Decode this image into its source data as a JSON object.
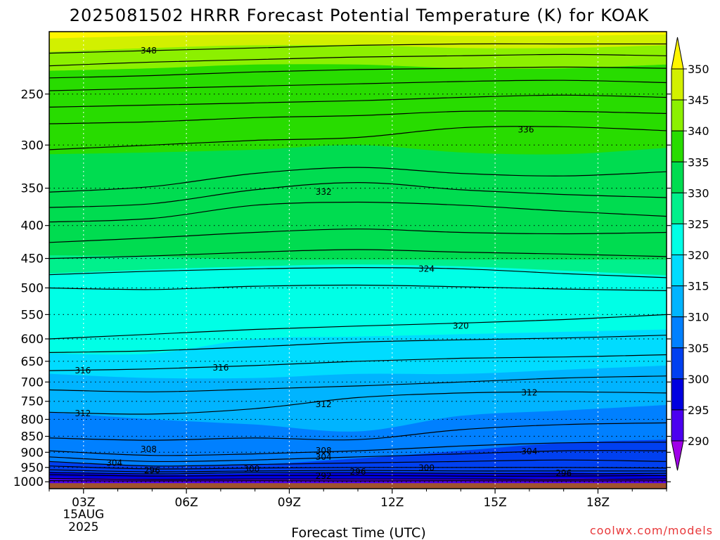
{
  "chart_data": {
    "type": "heatmap",
    "title": "2025081502 HRRR Forecast Potential Temperature (K) for KOAK",
    "xlabel": "Forecast Time (UTC)",
    "ylabel": "",
    "credit": "coolwx.com/models",
    "y_scale": "log",
    "y_inverted": true,
    "ylim": [
      1025,
      200
    ],
    "y_ticks": [
      250,
      300,
      350,
      400,
      450,
      500,
      550,
      600,
      650,
      700,
      750,
      800,
      850,
      900,
      950,
      1000
    ],
    "x_range_hours": [
      2,
      20
    ],
    "x_ticks": [
      {
        "hour": 3,
        "label": "03Z",
        "sub1": "15AUG",
        "sub2": "2025"
      },
      {
        "hour": 6,
        "label": "06Z",
        "sub1": "",
        "sub2": ""
      },
      {
        "hour": 9,
        "label": "09Z",
        "sub1": "",
        "sub2": ""
      },
      {
        "hour": 12,
        "label": "12Z",
        "sub1": "",
        "sub2": ""
      },
      {
        "hour": 15,
        "label": "15Z",
        "sub1": "",
        "sub2": ""
      },
      {
        "hour": 18,
        "label": "18Z",
        "sub1": "",
        "sub2": ""
      }
    ],
    "grid": true,
    "colorbar": {
      "placement": "right",
      "levels": [
        290,
        295,
        300,
        305,
        310,
        315,
        320,
        325,
        330,
        335,
        340,
        345,
        350
      ],
      "colors": [
        "#a000e8",
        "#4b00f0",
        "#0000e0",
        "#0040f0",
        "#0080ff",
        "#00b4ff",
        "#00dcff",
        "#00ffe6",
        "#00f08c",
        "#00dc50",
        "#28dc00",
        "#8cf000",
        "#d2f000",
        "#fff500"
      ]
    },
    "fill_bands": [
      {
        "value": 290,
        "p": [
          1000,
          1000,
          1000,
          1000,
          1000,
          1000,
          1000
        ]
      },
      {
        "value": 295,
        "p": [
          985,
          990,
          990,
          988,
          990,
          988,
          992
        ]
      },
      {
        "value": 300,
        "p": [
          965,
          975,
          972,
          968,
          970,
          968,
          975
        ]
      },
      {
        "value": 305,
        "p": [
          930,
          945,
          940,
          920,
          895,
          870,
          860
        ]
      },
      {
        "value": 310,
        "p": [
          780,
          800,
          815,
          835,
          790,
          775,
          760
        ]
      },
      {
        "value": 315,
        "p": [
          680,
          690,
          690,
          680,
          680,
          670,
          660
        ]
      },
      {
        "value": 320,
        "p": [
          632,
          632,
          600,
          595,
          590,
          585,
          580
        ]
      },
      {
        "value": 325,
        "p": [
          475,
          468,
          463,
          460,
          463,
          470,
          478
        ]
      },
      {
        "value": 330,
        "p": [
          445,
          447,
          452,
          452,
          452,
          452,
          452
        ]
      },
      {
        "value": 335,
        "p": [
          310,
          308,
          305,
          300,
          308,
          310,
          303
        ]
      },
      {
        "value": 340,
        "p": [
          230,
          228,
          225,
          225,
          228,
          228,
          225
        ]
      },
      {
        "value": 345,
        "p": [
          215,
          212,
          210,
          210,
          212,
          212,
          210
        ]
      },
      {
        "value": 350,
        "p": [
          205,
          203,
          202,
          202,
          203,
          203,
          202
        ]
      }
    ],
    "contours": [
      {
        "value": 292,
        "p": [
          996,
          997,
          996,
          997,
          996,
          997,
          996
        ]
      },
      {
        "value": 294,
        "p": [
          988,
          992,
          990,
          990,
          990,
          992,
          990
        ]
      },
      {
        "value": 296,
        "p": [
          975,
          980,
          978,
          978,
          980,
          980,
          978
        ]
      },
      {
        "value": 298,
        "p": [
          967,
          972,
          968,
          968,
          970,
          972,
          970
        ]
      },
      {
        "value": 300,
        "p": [
          958,
          965,
          962,
          960,
          962,
          962,
          962
        ]
      },
      {
        "value": 302,
        "p": [
          945,
          955,
          952,
          950,
          950,
          950,
          952
        ]
      },
      {
        "value": 304,
        "p": [
          930,
          945,
          940,
          935,
          930,
          925,
          930
        ]
      },
      {
        "value": 306,
        "p": [
          915,
          930,
          925,
          915,
          905,
          895,
          895
        ]
      },
      {
        "value": 308,
        "p": [
          895,
          910,
          905,
          895,
          880,
          870,
          868
        ]
      },
      {
        "value": 310,
        "p": [
          855,
          862,
          855,
          860,
          830,
          815,
          810
        ]
      },
      {
        "value": 312,
        "p": [
          780,
          785,
          770,
          740,
          728,
          725,
          728
        ]
      },
      {
        "value": 314,
        "p": [
          720,
          725,
          718,
          710,
          700,
          690,
          685
        ]
      },
      {
        "value": 316,
        "p": [
          672,
          668,
          660,
          650,
          643,
          640,
          635
        ]
      },
      {
        "value": 318,
        "p": [
          630,
          626,
          617,
          607,
          602,
          598,
          592
        ]
      },
      {
        "value": 320,
        "p": [
          600,
          590,
          580,
          573,
          567,
          560,
          550
        ]
      },
      {
        "value": 322,
        "p": [
          500,
          503,
          497,
          495,
          498,
          502,
          505
        ]
      },
      {
        "value": 324,
        "p": [
          477,
          471,
          467,
          465,
          467,
          475,
          482
        ]
      },
      {
        "value": 326,
        "p": [
          450,
          446,
          440,
          436,
          440,
          443,
          447
        ]
      },
      {
        "value": 328,
        "p": [
          425,
          418,
          410,
          405,
          410,
          412,
          410
        ]
      },
      {
        "value": 330,
        "p": [
          395,
          390,
          372,
          368,
          372,
          380,
          387
        ]
      },
      {
        "value": 332,
        "p": [
          375,
          370,
          352,
          343,
          352,
          358,
          362
        ]
      },
      {
        "value": 334,
        "p": [
          355,
          348,
          332,
          325,
          332,
          335,
          330
        ]
      },
      {
        "value": 336,
        "p": [
          305,
          300,
          295,
          292,
          282,
          281,
          285
        ]
      },
      {
        "value": 338,
        "p": [
          278,
          276,
          272,
          270,
          266,
          266,
          268
        ]
      },
      {
        "value": 340,
        "p": [
          262,
          260,
          258,
          256,
          253,
          251,
          253
        ]
      },
      {
        "value": 342,
        "p": [
          247,
          245,
          243,
          241,
          239,
          238,
          240
        ]
      },
      {
        "value": 344,
        "p": [
          236,
          234,
          231,
          229,
          228,
          227,
          228
        ]
      },
      {
        "value": 346,
        "p": [
          226,
          223,
          221,
          219,
          218,
          217,
          218
        ]
      },
      {
        "value": 348,
        "p": [
          216,
          214,
          212,
          210,
          209,
          209,
          209
        ]
      }
    ],
    "contour_labels": [
      {
        "text": "348",
        "hour": 4.9,
        "p": 214
      },
      {
        "text": "336",
        "hour": 15.9,
        "p": 284
      },
      {
        "text": "332",
        "hour": 10.0,
        "p": 355
      },
      {
        "text": "324",
        "hour": 13.0,
        "p": 467
      },
      {
        "text": "320",
        "hour": 14.0,
        "p": 573
      },
      {
        "text": "316",
        "hour": 2.98,
        "p": 672
      },
      {
        "text": "316",
        "hour": 7.0,
        "p": 665
      },
      {
        "text": "312",
        "hour": 2.98,
        "p": 783
      },
      {
        "text": "312",
        "hour": 10.0,
        "p": 758
      },
      {
        "text": "312",
        "hour": 16.0,
        "p": 727
      },
      {
        "text": "308",
        "hour": 4.9,
        "p": 890
      },
      {
        "text": "308",
        "hour": 10.0,
        "p": 895
      },
      {
        "text": "304",
        "hour": 10.0,
        "p": 915
      },
      {
        "text": "304",
        "hour": 16.0,
        "p": 897
      },
      {
        "text": "304",
        "hour": 3.9,
        "p": 935
      },
      {
        "text": "300",
        "hour": 7.9,
        "p": 955
      },
      {
        "text": "300",
        "hour": 13.0,
        "p": 952
      },
      {
        "text": "296",
        "hour": 5.0,
        "p": 960
      },
      {
        "text": "296",
        "hour": 11.0,
        "p": 965
      },
      {
        "text": "296",
        "hour": 17.0,
        "p": 970
      },
      {
        "text": "292",
        "hour": 10.0,
        "p": 980
      }
    ],
    "ground_color": "#a0522d"
  }
}
